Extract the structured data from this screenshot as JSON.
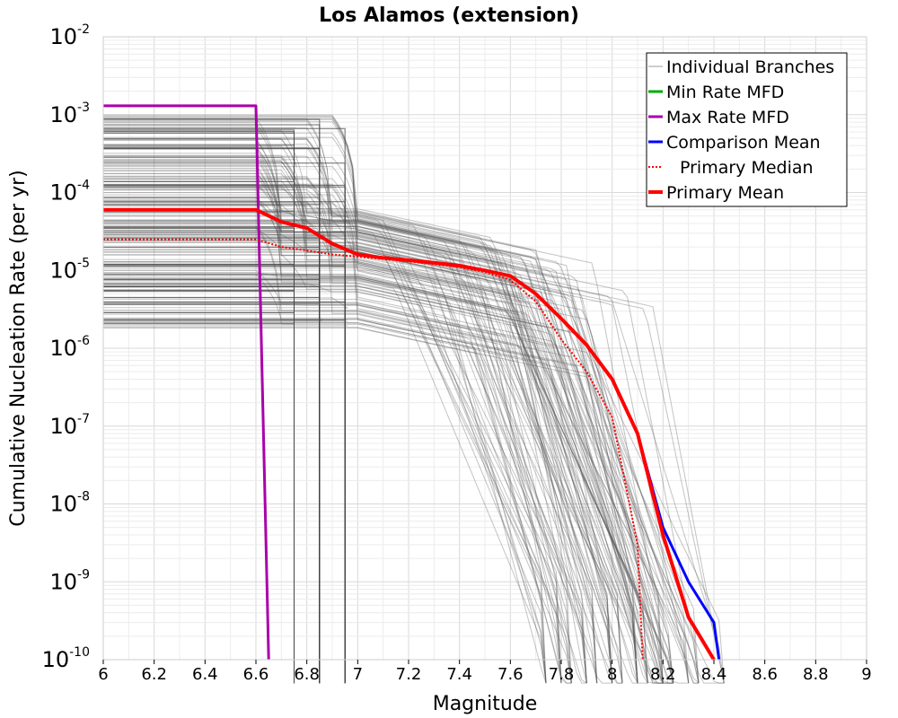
{
  "chart_data": {
    "type": "line",
    "title": "Los Alamos (extension)",
    "xlabel": "Magnitude",
    "ylabel": "Cumulative Nucleation Rate (per yr)",
    "xlim": [
      6,
      9
    ],
    "ylim": [
      1e-10,
      0.01
    ],
    "yscale": "log",
    "grid": true,
    "legend_position": "top-right",
    "x_ticks": [
      "6",
      "6.2",
      "6.4",
      "6.6",
      "6.8",
      "7",
      "7.2",
      "7.4",
      "7.6",
      "7.8",
      "8",
      "8.2",
      "8.4",
      "8.6",
      "8.8",
      "9"
    ],
    "y_ticks": [
      {
        "base": "10",
        "exp": "-2",
        "value": 0.01
      },
      {
        "base": "10",
        "exp": "-3",
        "value": 0.001
      },
      {
        "base": "10",
        "exp": "-4",
        "value": 0.0001
      },
      {
        "base": "10",
        "exp": "-5",
        "value": 1e-05
      },
      {
        "base": "10",
        "exp": "-6",
        "value": 1e-06
      },
      {
        "base": "10",
        "exp": "-7",
        "value": 1e-07
      },
      {
        "base": "10",
        "exp": "-8",
        "value": 1e-08
      },
      {
        "base": "10",
        "exp": "-9",
        "value": 1e-09
      },
      {
        "base": "10",
        "exp": "-10",
        "value": 1e-10
      }
    ],
    "series": [
      {
        "name": "Individual Branches",
        "color": "#555555",
        "style": "thin-gray-bundle",
        "x": [
          6.0,
          6.6,
          6.7,
          6.8,
          6.9,
          7.0,
          7.2,
          7.4,
          7.6,
          7.7,
          7.8,
          7.9,
          8.0,
          8.1,
          8.2,
          8.3,
          8.4
        ],
        "envelope_upper": [
          0.001,
          0.001,
          0.00095,
          0.00095,
          0.00045,
          0.00012,
          7e-05,
          5e-05,
          3.5e-05,
          2.5e-05,
          1.5e-05,
          8e-06,
          2.5e-06,
          1e-06,
          3e-07,
          3e-07,
          2e-07
        ],
        "envelope_lower": [
          1.8e-06,
          1.8e-06,
          1.6e-06,
          1.6e-06,
          1.4e-06,
          1.2e-06,
          8e-07,
          3e-07,
          1e-08,
          1e-10,
          1e-10,
          1e-10,
          1e-10,
          1e-10,
          1e-10,
          1e-10,
          1e-10
        ]
      },
      {
        "name": "Min Rate MFD",
        "color": "#00aa00",
        "style": "solid",
        "x": [],
        "y": []
      },
      {
        "name": "Max Rate MFD",
        "color": "#aa00aa",
        "style": "solid",
        "x": [
          6.0,
          6.6,
          6.65
        ],
        "y": [
          0.0013,
          0.0013,
          1e-10
        ]
      },
      {
        "name": "Comparison Mean",
        "color": "#0000ff",
        "style": "solid",
        "x": [
          6.0,
          6.6,
          6.7,
          6.8,
          6.9,
          7.0,
          7.1,
          7.2,
          7.3,
          7.4,
          7.5,
          7.6,
          7.7,
          7.8,
          7.9,
          8.0,
          8.1,
          8.2,
          8.3,
          8.4,
          8.42
        ],
        "y": [
          6e-05,
          6e-05,
          4.2e-05,
          3.5e-05,
          2.2e-05,
          1.6e-05,
          1.45e-05,
          1.35e-05,
          1.25e-05,
          1.15e-05,
          1e-05,
          8.5e-06,
          5e-06,
          2.4e-06,
          1.1e-06,
          4e-07,
          8e-08,
          5e-09,
          1e-09,
          3e-10,
          1e-10
        ]
      },
      {
        "name": "Primary Median",
        "color": "#ff0000",
        "style": "dotted",
        "x": [
          6.0,
          6.6,
          6.7,
          6.8,
          6.9,
          7.0,
          7.1,
          7.2,
          7.3,
          7.4,
          7.5,
          7.6,
          7.7,
          7.8,
          7.9,
          8.0,
          8.1,
          8.12
        ],
        "y": [
          2.5e-05,
          2.5e-05,
          2e-05,
          1.8e-05,
          1.6e-05,
          1.5e-05,
          1.4e-05,
          1.3e-05,
          1.2e-05,
          1.1e-05,
          9.5e-06,
          7.5e-06,
          4e-06,
          1.3e-06,
          5e-07,
          1.3e-07,
          3e-09,
          1e-10
        ]
      },
      {
        "name": "Primary Mean",
        "color": "#ff0000",
        "style": "thick",
        "x": [
          6.0,
          6.6,
          6.7,
          6.8,
          6.9,
          7.0,
          7.1,
          7.2,
          7.3,
          7.4,
          7.5,
          7.6,
          7.7,
          7.8,
          7.9,
          8.0,
          8.1,
          8.2,
          8.3,
          8.4
        ],
        "y": [
          6e-05,
          6e-05,
          4.2e-05,
          3.5e-05,
          2.2e-05,
          1.6e-05,
          1.45e-05,
          1.35e-05,
          1.25e-05,
          1.15e-05,
          1e-05,
          8.5e-06,
          5e-06,
          2.4e-06,
          1.1e-06,
          4e-07,
          8e-08,
          4e-09,
          3.5e-10,
          1e-10
        ]
      }
    ]
  }
}
